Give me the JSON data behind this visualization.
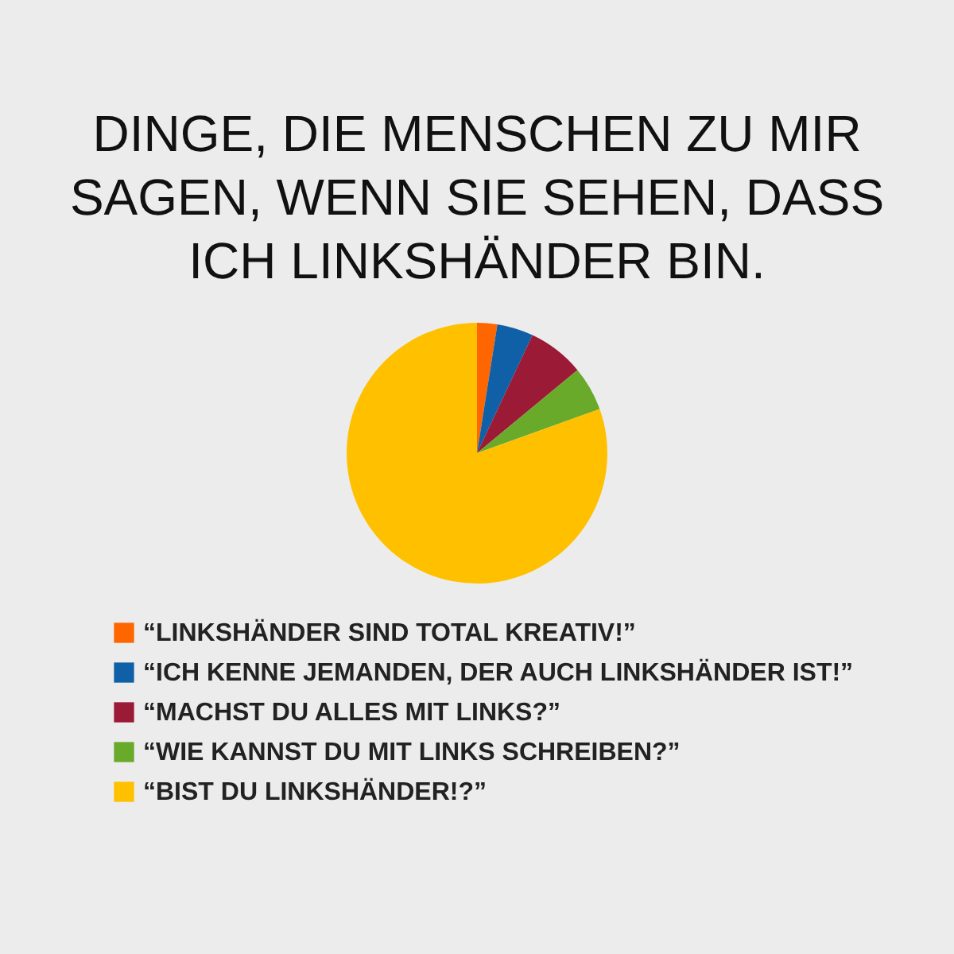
{
  "chart_data": {
    "type": "pie",
    "title": "DINGE, DIE MENSCHEN ZU MIR SAGEN, WENN SIE SEHEN, DASS ICH LINKSHÄNDER BIN.",
    "categories": [
      "“LINKSHÄNDER SIND TOTAL KREATIV!”",
      "“ICH KENNE JEMANDEN, DER AUCH LINKSHÄNDER IST!”",
      "“MACHST DU ALLES MIT LINKS?”",
      "“WIE KANNST DU MIT LINKS SCHREIBEN?”",
      "“BIST DU LINKSHÄNDER!?”"
    ],
    "values": [
      2.5,
      4.5,
      7,
      5.5,
      80.5
    ],
    "colors": [
      "#ff6600",
      "#1060a8",
      "#9b1a35",
      "#6aaa2a",
      "#ffc000"
    ],
    "legend": "bottom"
  }
}
